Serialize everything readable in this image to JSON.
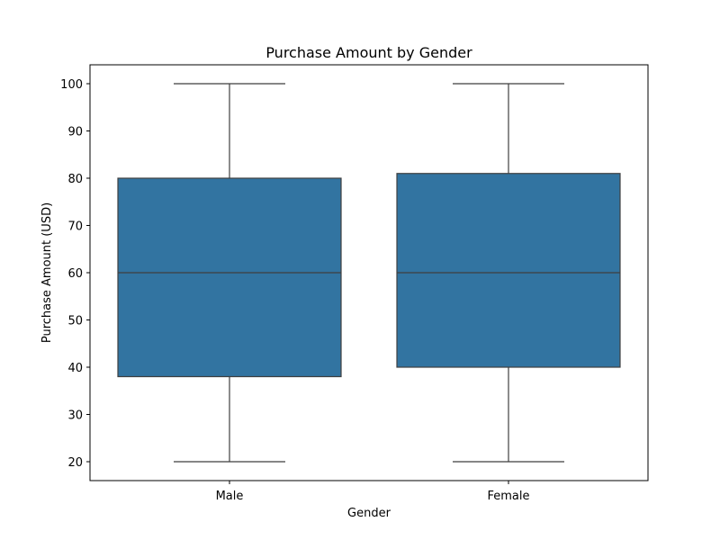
{
  "chart_data": {
    "type": "box",
    "title": "Purchase Amount by Gender",
    "xlabel": "Gender",
    "ylabel": "Purchase Amount (USD)",
    "ylim": [
      16,
      104
    ],
    "yticks": [
      20,
      30,
      40,
      50,
      60,
      70,
      80,
      90,
      100
    ],
    "grid": false,
    "categories": [
      "Male",
      "Female"
    ],
    "boxes": [
      {
        "category": "Male",
        "whisker_low": 20,
        "q1": 38,
        "median": 60,
        "q3": 80,
        "whisker_high": 100
      },
      {
        "category": "Female",
        "whisker_low": 20,
        "q1": 40,
        "median": 60,
        "q3": 81,
        "whisker_high": 100
      }
    ],
    "colors": {
      "box_fill": "#3274a1",
      "box_edge": "#3f3f3f",
      "axis": "#000000"
    }
  }
}
